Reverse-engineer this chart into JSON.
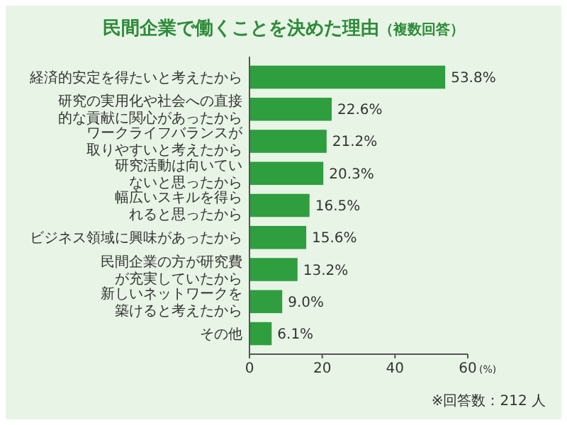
{
  "chart_data": {
    "type": "bar",
    "orientation": "horizontal",
    "title": "民間企業で働くことを決めた理由",
    "subtitle": "（複数回答）",
    "xlabel": "(%)",
    "categories": [
      "経済的安定を得たいと考えたから",
      "研究の実用化や社会への直接的な貢献に関心があったから",
      "ワークライフバランスが取りやすいと考えたから",
      "研究活動は向いていないと思ったから",
      "幅広いスキルを得られると思ったから",
      "ビジネス領域に興味があったから",
      "民間企業の方が研究費が充実していたから",
      "新しいネットワークを築けると考えたから",
      "その他"
    ],
    "values": [
      53.8,
      22.6,
      21.2,
      20.3,
      16.5,
      15.6,
      13.2,
      9.0,
      6.1
    ],
    "value_labels": [
      "53.8%",
      "22.6%",
      "21.2%",
      "20.3%",
      "16.5%",
      "15.6%",
      "13.2%",
      "9.0%",
      "6.1%"
    ],
    "color": "#2e9e3e",
    "xlim": [
      0,
      60
    ],
    "xticks": [
      0,
      20,
      40,
      60
    ],
    "grid": false,
    "annotations": [
      "※回答数：212 人"
    ]
  }
}
